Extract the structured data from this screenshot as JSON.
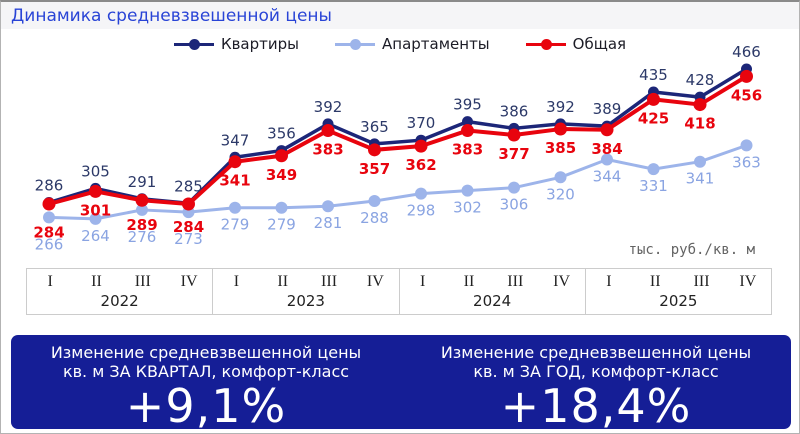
{
  "title": "Динамика средневзвешенной цены",
  "unit_label": "тыс. руб./кв. м",
  "colors": {
    "title": "#2944d6",
    "panel_bg": "#151e96",
    "panel_text": "#ffffff",
    "axis_text": "#222222",
    "axis_border": "#cccccc",
    "unit_text": "#636363"
  },
  "chart_data": {
    "type": "line",
    "x_groups": [
      {
        "year": "2022",
        "quarters": [
          "I",
          "II",
          "III",
          "IV"
        ]
      },
      {
        "year": "2023",
        "quarters": [
          "I",
          "II",
          "III",
          "IV"
        ]
      },
      {
        "year": "2024",
        "quarters": [
          "I",
          "II",
          "III",
          "IV"
        ]
      },
      {
        "year": "2025",
        "quarters": [
          "I",
          "II",
          "III",
          "IV"
        ]
      }
    ],
    "categories": [
      "2022-I",
      "2022-II",
      "2022-III",
      "2022-IV",
      "2023-I",
      "2023-II",
      "2023-III",
      "2023-IV",
      "2024-I",
      "2024-II",
      "2024-III",
      "2024-IV",
      "2025-I",
      "2025-II",
      "2025-III",
      "2025-IV"
    ],
    "series": [
      {
        "name": "Квартиры",
        "key": "kvartiry",
        "color": "#1c2678",
        "label_color": "#2c3968",
        "values": [
          286,
          305,
          291,
          285,
          347,
          356,
          392,
          365,
          370,
          395,
          386,
          392,
          389,
          435,
          428,
          466
        ]
      },
      {
        "name": "Апартаменты",
        "key": "apartamenty",
        "color": "#9db4ea",
        "label_color": "#8aa4e2",
        "values": [
          266,
          264,
          276,
          273,
          279,
          279,
          281,
          288,
          298,
          302,
          306,
          320,
          344,
          331,
          341,
          363
        ]
      },
      {
        "name": "Общая",
        "key": "obshchaya",
        "color": "#e8040e",
        "label_color": "#e8040e",
        "values": [
          284,
          301,
          289,
          284,
          341,
          349,
          383,
          357,
          362,
          383,
          377,
          385,
          384,
          425,
          418,
          456
        ]
      }
    ],
    "ylim": [
      250,
      480
    ],
    "unit": "тыс. руб./кв. м",
    "legend_position": "top",
    "grid": false
  },
  "panels": [
    {
      "line1": "Изменение средневзвешенной цены",
      "line2": "кв. м ЗА КВАРТАЛ, комфорт-класс",
      "value": "+9,1%"
    },
    {
      "line1": "Изменение средневзвешенной цены",
      "line2": "кв. м ЗА ГОД, комфорт-класс",
      "value": "+18,4%"
    }
  ]
}
